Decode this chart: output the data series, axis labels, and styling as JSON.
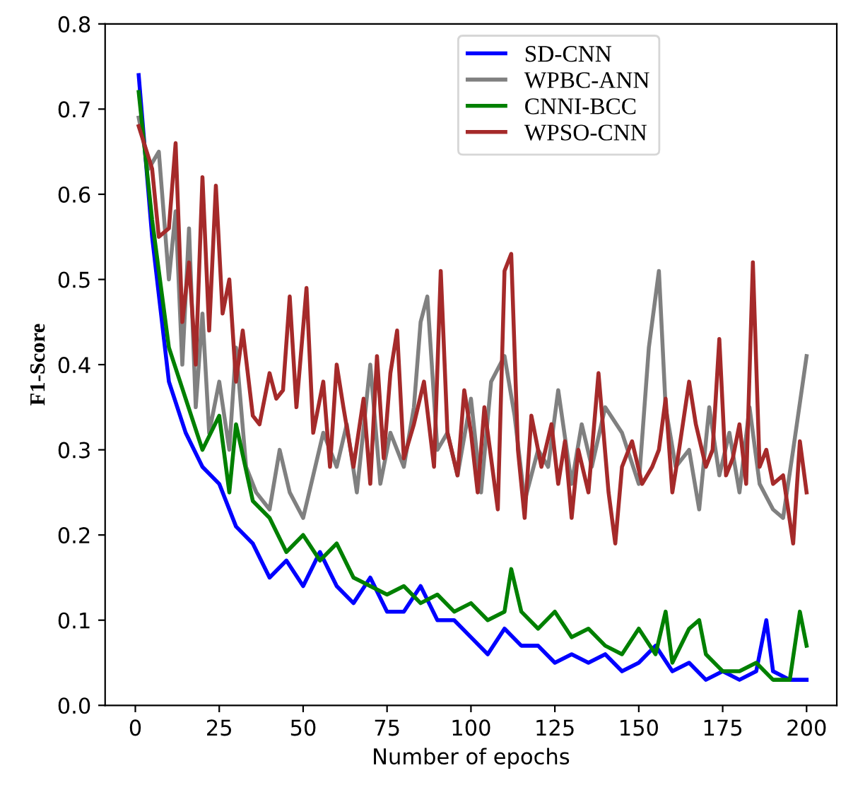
{
  "chart_data": {
    "type": "line",
    "xlabel": "Number of epochs",
    "ylabel": "F1-Score",
    "xlim": [
      -9,
      209
    ],
    "ylim": [
      0,
      0.8
    ],
    "xticks": [
      0,
      25,
      50,
      75,
      100,
      125,
      150,
      175,
      200
    ],
    "yticks": [
      {
        "value": 0,
        "label": "0.0"
      },
      0.1,
      0.2,
      0.3,
      0.4,
      0.5,
      0.6,
      0.7,
      0.8
    ],
    "grid": false,
    "legend": "top",
    "series": [
      {
        "name": "SD-CNN",
        "color": "#0000ff",
        "x": [
          1,
          5,
          10,
          15,
          20,
          25,
          30,
          35,
          40,
          45,
          50,
          55,
          60,
          65,
          70,
          75,
          80,
          85,
          90,
          95,
          100,
          105,
          110,
          115,
          120,
          125,
          130,
          135,
          140,
          145,
          150,
          155,
          160,
          165,
          170,
          175,
          180,
          185,
          188,
          190,
          195,
          200
        ],
        "values": [
          0.74,
          0.55,
          0.38,
          0.32,
          0.28,
          0.26,
          0.21,
          0.19,
          0.15,
          0.17,
          0.14,
          0.18,
          0.14,
          0.12,
          0.15,
          0.11,
          0.11,
          0.14,
          0.1,
          0.1,
          0.08,
          0.06,
          0.09,
          0.07,
          0.07,
          0.05,
          0.06,
          0.05,
          0.06,
          0.04,
          0.05,
          0.07,
          0.04,
          0.05,
          0.03,
          0.04,
          0.03,
          0.04,
          0.1,
          0.04,
          0.03,
          0.03
        ]
      },
      {
        "name": "WPBC-ANN",
        "color": "#808080",
        "x": [
          1,
          4,
          7,
          10,
          12,
          14,
          16,
          18,
          20,
          22,
          25,
          28,
          30,
          33,
          36,
          40,
          43,
          46,
          50,
          53,
          56,
          60,
          63,
          66,
          70,
          73,
          76,
          80,
          83,
          85,
          87,
          90,
          93,
          96,
          100,
          103,
          106,
          110,
          113,
          116,
          120,
          123,
          126,
          130,
          133,
          136,
          140,
          145,
          150,
          153,
          156,
          158,
          161,
          165,
          168,
          171,
          174,
          177,
          180,
          183,
          186,
          190,
          193,
          196,
          200
        ],
        "values": [
          0.69,
          0.63,
          0.65,
          0.5,
          0.58,
          0.4,
          0.56,
          0.35,
          0.46,
          0.32,
          0.38,
          0.3,
          0.42,
          0.28,
          0.25,
          0.23,
          0.3,
          0.25,
          0.22,
          0.27,
          0.32,
          0.28,
          0.33,
          0.25,
          0.4,
          0.26,
          0.32,
          0.28,
          0.35,
          0.45,
          0.48,
          0.3,
          0.32,
          0.27,
          0.36,
          0.25,
          0.38,
          0.41,
          0.34,
          0.24,
          0.3,
          0.28,
          0.37,
          0.26,
          0.33,
          0.28,
          0.35,
          0.32,
          0.26,
          0.42,
          0.51,
          0.35,
          0.28,
          0.3,
          0.23,
          0.35,
          0.27,
          0.32,
          0.25,
          0.35,
          0.26,
          0.23,
          0.22,
          0.3,
          0.41
        ]
      },
      {
        "name": "CNNI-BCC",
        "color": "#008000",
        "x": [
          1,
          5,
          10,
          15,
          20,
          25,
          28,
          30,
          35,
          40,
          45,
          50,
          55,
          60,
          65,
          70,
          75,
          80,
          85,
          90,
          95,
          100,
          105,
          110,
          112,
          115,
          120,
          125,
          130,
          135,
          140,
          145,
          150,
          155,
          158,
          160,
          165,
          168,
          170,
          175,
          180,
          185,
          190,
          195,
          198,
          200
        ],
        "values": [
          0.72,
          0.57,
          0.42,
          0.36,
          0.3,
          0.34,
          0.25,
          0.33,
          0.24,
          0.22,
          0.18,
          0.2,
          0.17,
          0.19,
          0.15,
          0.14,
          0.13,
          0.14,
          0.12,
          0.13,
          0.11,
          0.12,
          0.1,
          0.11,
          0.16,
          0.11,
          0.09,
          0.11,
          0.08,
          0.09,
          0.07,
          0.06,
          0.09,
          0.06,
          0.11,
          0.05,
          0.09,
          0.1,
          0.06,
          0.04,
          0.04,
          0.05,
          0.03,
          0.03,
          0.11,
          0.07
        ]
      },
      {
        "name": "WPSO-CNN",
        "color": "#a52a2a",
        "x": [
          1,
          5,
          7,
          10,
          12,
          14,
          16,
          18,
          20,
          22,
          24,
          26,
          28,
          30,
          32,
          35,
          37,
          40,
          42,
          44,
          46,
          48,
          51,
          53,
          56,
          58,
          60,
          62,
          65,
          68,
          70,
          72,
          74,
          76,
          78,
          80,
          83,
          86,
          89,
          91,
          93,
          96,
          98,
          100,
          102,
          104,
          106,
          108,
          110,
          112,
          114,
          116,
          118,
          121,
          124,
          126,
          128,
          130,
          132,
          135,
          138,
          141,
          143,
          145,
          148,
          151,
          154,
          156,
          158,
          160,
          162,
          165,
          167,
          170,
          172,
          174,
          176,
          178,
          180,
          182,
          184,
          186,
          188,
          190,
          193,
          196,
          198,
          200
        ],
        "values": [
          0.68,
          0.63,
          0.55,
          0.56,
          0.66,
          0.45,
          0.52,
          0.4,
          0.62,
          0.44,
          0.61,
          0.46,
          0.5,
          0.38,
          0.44,
          0.34,
          0.33,
          0.39,
          0.36,
          0.37,
          0.48,
          0.35,
          0.49,
          0.32,
          0.38,
          0.28,
          0.4,
          0.35,
          0.28,
          0.36,
          0.26,
          0.41,
          0.29,
          0.39,
          0.44,
          0.29,
          0.33,
          0.38,
          0.28,
          0.51,
          0.32,
          0.27,
          0.37,
          0.32,
          0.25,
          0.35,
          0.29,
          0.23,
          0.51,
          0.53,
          0.3,
          0.22,
          0.34,
          0.28,
          0.33,
          0.26,
          0.31,
          0.22,
          0.3,
          0.25,
          0.39,
          0.25,
          0.19,
          0.28,
          0.31,
          0.26,
          0.28,
          0.3,
          0.36,
          0.25,
          0.3,
          0.38,
          0.33,
          0.28,
          0.3,
          0.43,
          0.27,
          0.29,
          0.33,
          0.26,
          0.52,
          0.28,
          0.3,
          0.26,
          0.27,
          0.19,
          0.31,
          0.25
        ]
      }
    ]
  }
}
